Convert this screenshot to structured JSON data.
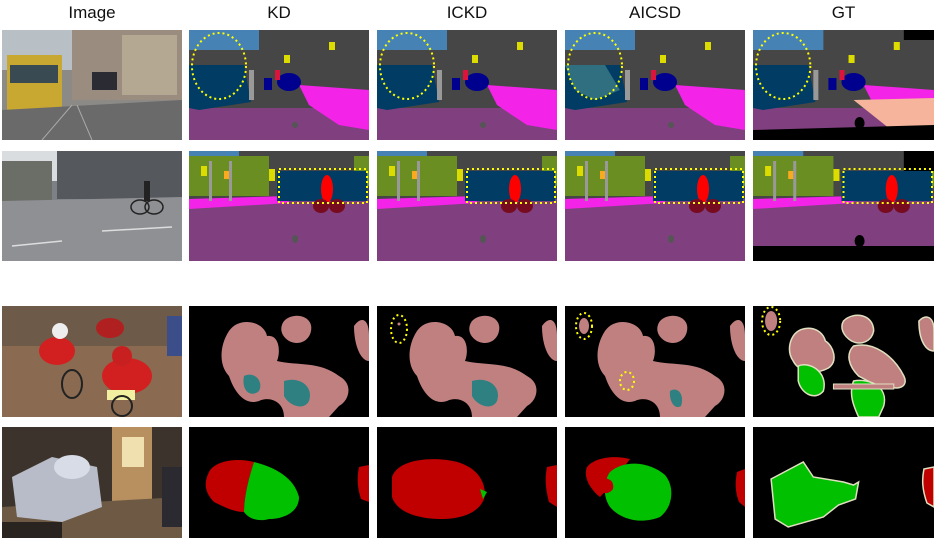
{
  "columns": [
    "Image",
    "KD",
    "ICKD",
    "AICSD",
    "GT"
  ],
  "colors": {
    "road": "#804080",
    "sidewalk": "#f423e8",
    "building": "#464646",
    "sky": "#4682b4",
    "vegetation": "#6b8e23",
    "car": "#00008e",
    "person": "#dc143c",
    "rider": "#ff0000",
    "bicycle": "#770b20",
    "bus": "#003c64",
    "traffic_sign": "#dcdc00",
    "traffic_light": "#faaa1e",
    "pole": "#999999",
    "terrain": "#f5b49b",
    "voc_person": "#c08080",
    "voc_bicycle": "#008080",
    "voc_green": "#00c000",
    "voc_red": "#c00000",
    "voc_boundary": "#e0e0c0",
    "highlight": "#ffff00",
    "background": "#000000"
  }
}
